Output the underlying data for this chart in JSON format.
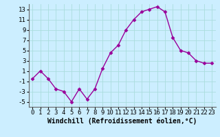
{
  "x": [
    0,
    1,
    2,
    3,
    4,
    5,
    6,
    7,
    8,
    9,
    10,
    11,
    12,
    13,
    14,
    15,
    16,
    17,
    18,
    19,
    20,
    21,
    22,
    23
  ],
  "y": [
    -0.5,
    1.0,
    -0.5,
    -2.5,
    -3.0,
    -5.0,
    -2.5,
    -4.5,
    -2.5,
    1.5,
    4.5,
    6.0,
    9.0,
    11.0,
    12.5,
    13.0,
    13.5,
    12.5,
    7.5,
    5.0,
    4.5,
    3.0,
    2.5,
    2.5
  ],
  "line_color": "#990099",
  "marker": "D",
  "markersize": 2.5,
  "linewidth": 1.0,
  "xlabel": "Windchill (Refroidissement éolien,°C)",
  "xlabel_fontsize": 7,
  "xlim": [
    -0.5,
    23.5
  ],
  "ylim": [
    -6,
    14
  ],
  "yticks": [
    -5,
    -3,
    -1,
    1,
    3,
    5,
    7,
    9,
    11,
    13
  ],
  "xticks": [
    0,
    1,
    2,
    3,
    4,
    5,
    6,
    7,
    8,
    9,
    10,
    11,
    12,
    13,
    14,
    15,
    16,
    17,
    18,
    19,
    20,
    21,
    22,
    23
  ],
  "grid_color": "#aadddd",
  "background_color": "#cceeff",
  "tick_fontsize": 6.5,
  "spine_color": "#666666"
}
